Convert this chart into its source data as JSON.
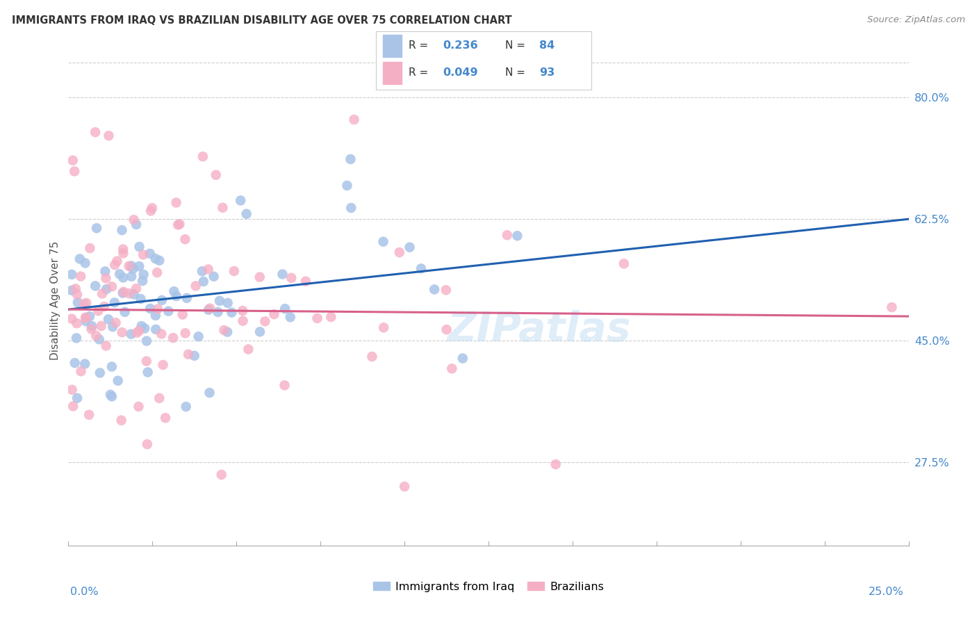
{
  "title": "IMMIGRANTS FROM IRAQ VS BRAZILIAN DISABILITY AGE OVER 75 CORRELATION CHART",
  "source": "Source: ZipAtlas.com",
  "ylabel": "Disability Age Over 75",
  "ytick_labels": [
    "27.5%",
    "45.0%",
    "62.5%",
    "80.0%"
  ],
  "ytick_values": [
    0.275,
    0.45,
    0.625,
    0.8
  ],
  "xmin": 0.0,
  "xmax": 0.25,
  "ymin": 0.155,
  "ymax": 0.86,
  "legend_R1": "0.236",
  "legend_N1": "84",
  "legend_R2": "0.049",
  "legend_N2": "93",
  "color_iraq": "#aac4e8",
  "color_brazil": "#f5afc5",
  "color_iraq_line": "#2060b0",
  "color_brazil_line": "#d8608a",
  "color_text_blue": "#4488cc",
  "color_title": "#333333",
  "background": "#ffffff",
  "grid_color": "#cccccc",
  "watermark": "ZIPatlas",
  "legend_label_iraq": "Immigrants from Iraq",
  "legend_label_brazil": "Brazilians"
}
